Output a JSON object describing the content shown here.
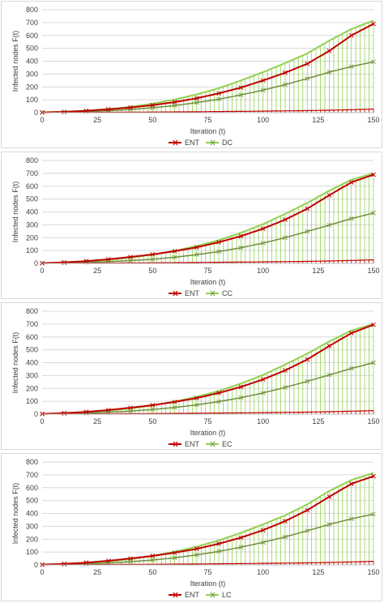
{
  "chart_data": [
    {
      "type": "line",
      "xlabel": "Iteration (t)",
      "ylabel": "Infected nodes F(t)",
      "xlim": [
        0,
        150
      ],
      "ylim": [
        0,
        800
      ],
      "xticks": [
        "0",
        "25",
        "50",
        "75",
        "100",
        "125",
        "150"
      ],
      "yticks": [
        "0",
        "100",
        "200",
        "300",
        "400",
        "500",
        "600",
        "700",
        "800"
      ],
      "grid": true,
      "legend_position": "bottom",
      "x": [
        0,
        10,
        20,
        30,
        40,
        50,
        60,
        70,
        80,
        90,
        100,
        110,
        120,
        130,
        140,
        150
      ],
      "series": [
        {
          "name": "ENT",
          "color": "#c00000",
          "values": [
            2,
            6,
            14,
            26,
            40,
            58,
            82,
            112,
            150,
            195,
            250,
            310,
            380,
            480,
            600,
            690
          ],
          "spread_values": [
            0,
            1,
            2,
            3,
            4,
            5,
            6,
            7,
            9,
            10,
            12,
            14,
            16,
            19,
            23,
            28
          ]
        },
        {
          "name": "DC",
          "color": "#92d050",
          "values": [
            1,
            4,
            8,
            15,
            25,
            38,
            55,
            78,
            105,
            138,
            175,
            218,
            265,
            315,
            358,
            395
          ],
          "band_upper": [
            3,
            8,
            16,
            28,
            45,
            70,
            102,
            142,
            190,
            250,
            315,
            385,
            460,
            560,
            650,
            715
          ],
          "band_lower": [
            0,
            0,
            0,
            0,
            0,
            0,
            0,
            0,
            0,
            0,
            0,
            0,
            0,
            0,
            0,
            0
          ]
        }
      ]
    },
    {
      "type": "line",
      "xlabel": "Iteration (t)",
      "ylabel": "Infected nodes F(t)",
      "xlim": [
        0,
        150
      ],
      "ylim": [
        0,
        800
      ],
      "xticks": [
        "0",
        "25",
        "50",
        "75",
        "100",
        "125",
        "150"
      ],
      "yticks": [
        "0",
        "100",
        "200",
        "300",
        "400",
        "500",
        "600",
        "700",
        "800"
      ],
      "grid": true,
      "legend_position": "bottom",
      "x": [
        0,
        10,
        20,
        30,
        40,
        50,
        60,
        70,
        80,
        90,
        100,
        110,
        120,
        130,
        140,
        150
      ],
      "series": [
        {
          "name": "ENT",
          "color": "#c00000",
          "values": [
            2,
            8,
            18,
            32,
            50,
            70,
            95,
            125,
            165,
            212,
            270,
            340,
            425,
            530,
            630,
            690
          ],
          "spread_values": [
            0,
            1,
            2,
            3,
            4,
            5,
            6,
            7,
            9,
            10,
            12,
            14,
            16,
            19,
            23,
            28
          ]
        },
        {
          "name": "CC",
          "color": "#92d050",
          "values": [
            1,
            4,
            8,
            14,
            22,
            32,
            48,
            68,
            92,
            122,
            158,
            200,
            248,
            298,
            348,
            392
          ],
          "band_upper": [
            3,
            8,
            16,
            28,
            45,
            68,
            98,
            135,
            180,
            238,
            305,
            385,
            470,
            565,
            650,
            700
          ],
          "band_lower": [
            0,
            0,
            0,
            0,
            0,
            0,
            0,
            0,
            0,
            0,
            0,
            0,
            0,
            0,
            0,
            0
          ]
        }
      ]
    },
    {
      "type": "line",
      "xlabel": "Iteration (t)",
      "ylabel": "Infected nodes F(t)",
      "xlim": [
        0,
        150
      ],
      "ylim": [
        0,
        800
      ],
      "xticks": [
        "0",
        "25",
        "50",
        "75",
        "100",
        "125",
        "150"
      ],
      "yticks": [
        "0",
        "100",
        "200",
        "300",
        "400",
        "500",
        "600",
        "700",
        "800"
      ],
      "grid": true,
      "legend_position": "bottom",
      "x": [
        0,
        10,
        20,
        30,
        40,
        50,
        60,
        70,
        80,
        90,
        100,
        110,
        120,
        130,
        140,
        150
      ],
      "series": [
        {
          "name": "ENT",
          "color": "#c00000",
          "values": [
            2,
            8,
            18,
            32,
            50,
            70,
            95,
            125,
            165,
            212,
            270,
            340,
            425,
            530,
            630,
            695
          ],
          "spread_values": [
            0,
            1,
            2,
            3,
            4,
            5,
            6,
            7,
            9,
            10,
            12,
            14,
            16,
            19,
            23,
            28
          ]
        },
        {
          "name": "EC",
          "color": "#92d050",
          "values": [
            1,
            4,
            8,
            15,
            24,
            36,
            52,
            72,
            98,
            128,
            165,
            208,
            255,
            305,
            355,
            400
          ],
          "band_upper": [
            3,
            8,
            16,
            28,
            45,
            68,
            98,
            135,
            180,
            238,
            305,
            385,
            470,
            565,
            650,
            700
          ],
          "band_lower": [
            0,
            0,
            0,
            0,
            0,
            0,
            0,
            0,
            0,
            0,
            0,
            0,
            0,
            0,
            0,
            0
          ]
        }
      ]
    },
    {
      "type": "line",
      "xlabel": "Iteration (t)",
      "ylabel": "Infected nodes F(t)",
      "xlim": [
        0,
        150
      ],
      "ylim": [
        0,
        800
      ],
      "xticks": [
        "0",
        "25",
        "50",
        "75",
        "100",
        "125",
        "150"
      ],
      "yticks": [
        "0",
        "100",
        "200",
        "300",
        "400",
        "500",
        "600",
        "700",
        "800"
      ],
      "grid": true,
      "legend_position": "bottom",
      "x": [
        0,
        10,
        20,
        30,
        40,
        50,
        60,
        70,
        80,
        90,
        100,
        110,
        120,
        130,
        140,
        150
      ],
      "series": [
        {
          "name": "ENT",
          "color": "#c00000",
          "values": [
            2,
            8,
            18,
            32,
            50,
            70,
            95,
            125,
            165,
            212,
            270,
            340,
            425,
            530,
            630,
            690
          ],
          "spread_values": [
            0,
            1,
            2,
            3,
            4,
            5,
            6,
            7,
            9,
            10,
            12,
            14,
            16,
            19,
            23,
            28
          ]
        },
        {
          "name": "LC",
          "color": "#92d050",
          "values": [
            1,
            4,
            8,
            15,
            25,
            38,
            55,
            78,
            105,
            138,
            175,
            218,
            265,
            315,
            358,
            395
          ],
          "band_upper": [
            3,
            8,
            16,
            28,
            45,
            70,
            102,
            142,
            190,
            250,
            315,
            385,
            470,
            575,
            660,
            715
          ],
          "band_lower": [
            0,
            0,
            0,
            0,
            0,
            0,
            0,
            0,
            0,
            0,
            0,
            0,
            0,
            0,
            0,
            0
          ]
        }
      ]
    }
  ]
}
